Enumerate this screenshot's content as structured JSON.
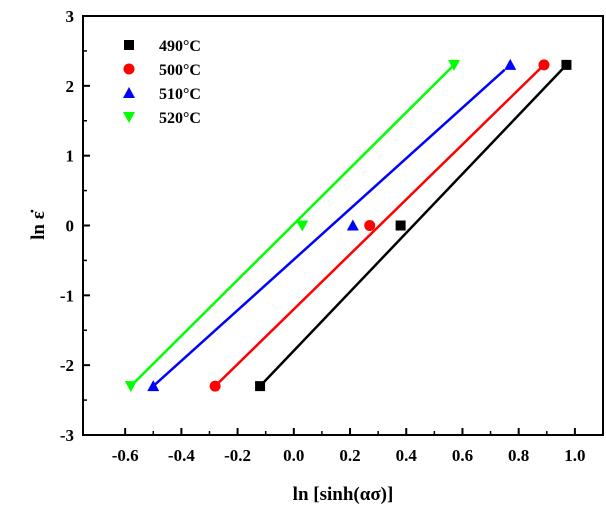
{
  "chart_data": {
    "type": "scatter",
    "xlabel": "ln [sinh(ασ)]",
    "ylabel": "ln ε̇",
    "xlim": [
      -0.75,
      1.1
    ],
    "ylim": [
      -3,
      3
    ],
    "xticks": [
      "-0.6",
      "-0.4",
      "-0.2",
      "0.0",
      "0.2",
      "0.4",
      "0.6",
      "0.8",
      "1.0"
    ],
    "xtick_values": [
      -0.6,
      -0.4,
      -0.2,
      0.0,
      0.2,
      0.4,
      0.6,
      0.8,
      1.0
    ],
    "yticks": [
      "-3",
      "-2",
      "-1",
      "0",
      "1",
      "2",
      "3"
    ],
    "ytick_values": [
      -3,
      -2,
      -1,
      0,
      1,
      2,
      3
    ],
    "grid": false,
    "legend_position": "top-left",
    "series": [
      {
        "name": "490°C",
        "color": "#000000",
        "marker": "square",
        "points": [
          [
            -0.12,
            -2.3
          ],
          [
            0.38,
            0.0
          ],
          [
            0.97,
            2.3
          ]
        ],
        "fit_line": [
          [
            -0.12,
            -2.3
          ],
          [
            0.97,
            2.3
          ]
        ]
      },
      {
        "name": "500°C",
        "color": "#ff0000",
        "marker": "circle",
        "points": [
          [
            -0.28,
            -2.3
          ],
          [
            0.27,
            0.0
          ],
          [
            0.89,
            2.3
          ]
        ],
        "fit_line": [
          [
            -0.28,
            -2.3
          ],
          [
            0.89,
            2.3
          ]
        ]
      },
      {
        "name": "510°C",
        "color": "#0000ff",
        "marker": "triangle-up",
        "points": [
          [
            -0.5,
            -2.3
          ],
          [
            0.21,
            0.0
          ],
          [
            0.77,
            2.3
          ]
        ],
        "fit_line": [
          [
            -0.5,
            -2.3
          ],
          [
            0.75,
            2.23
          ]
        ]
      },
      {
        "name": "520°C",
        "color": "#00ff00",
        "marker": "triangle-down",
        "points": [
          [
            -0.58,
            -2.3
          ],
          [
            0.03,
            0.0
          ],
          [
            0.57,
            2.3
          ]
        ],
        "fit_line": [
          [
            -0.58,
            -2.3
          ],
          [
            0.57,
            2.3
          ]
        ]
      }
    ]
  }
}
